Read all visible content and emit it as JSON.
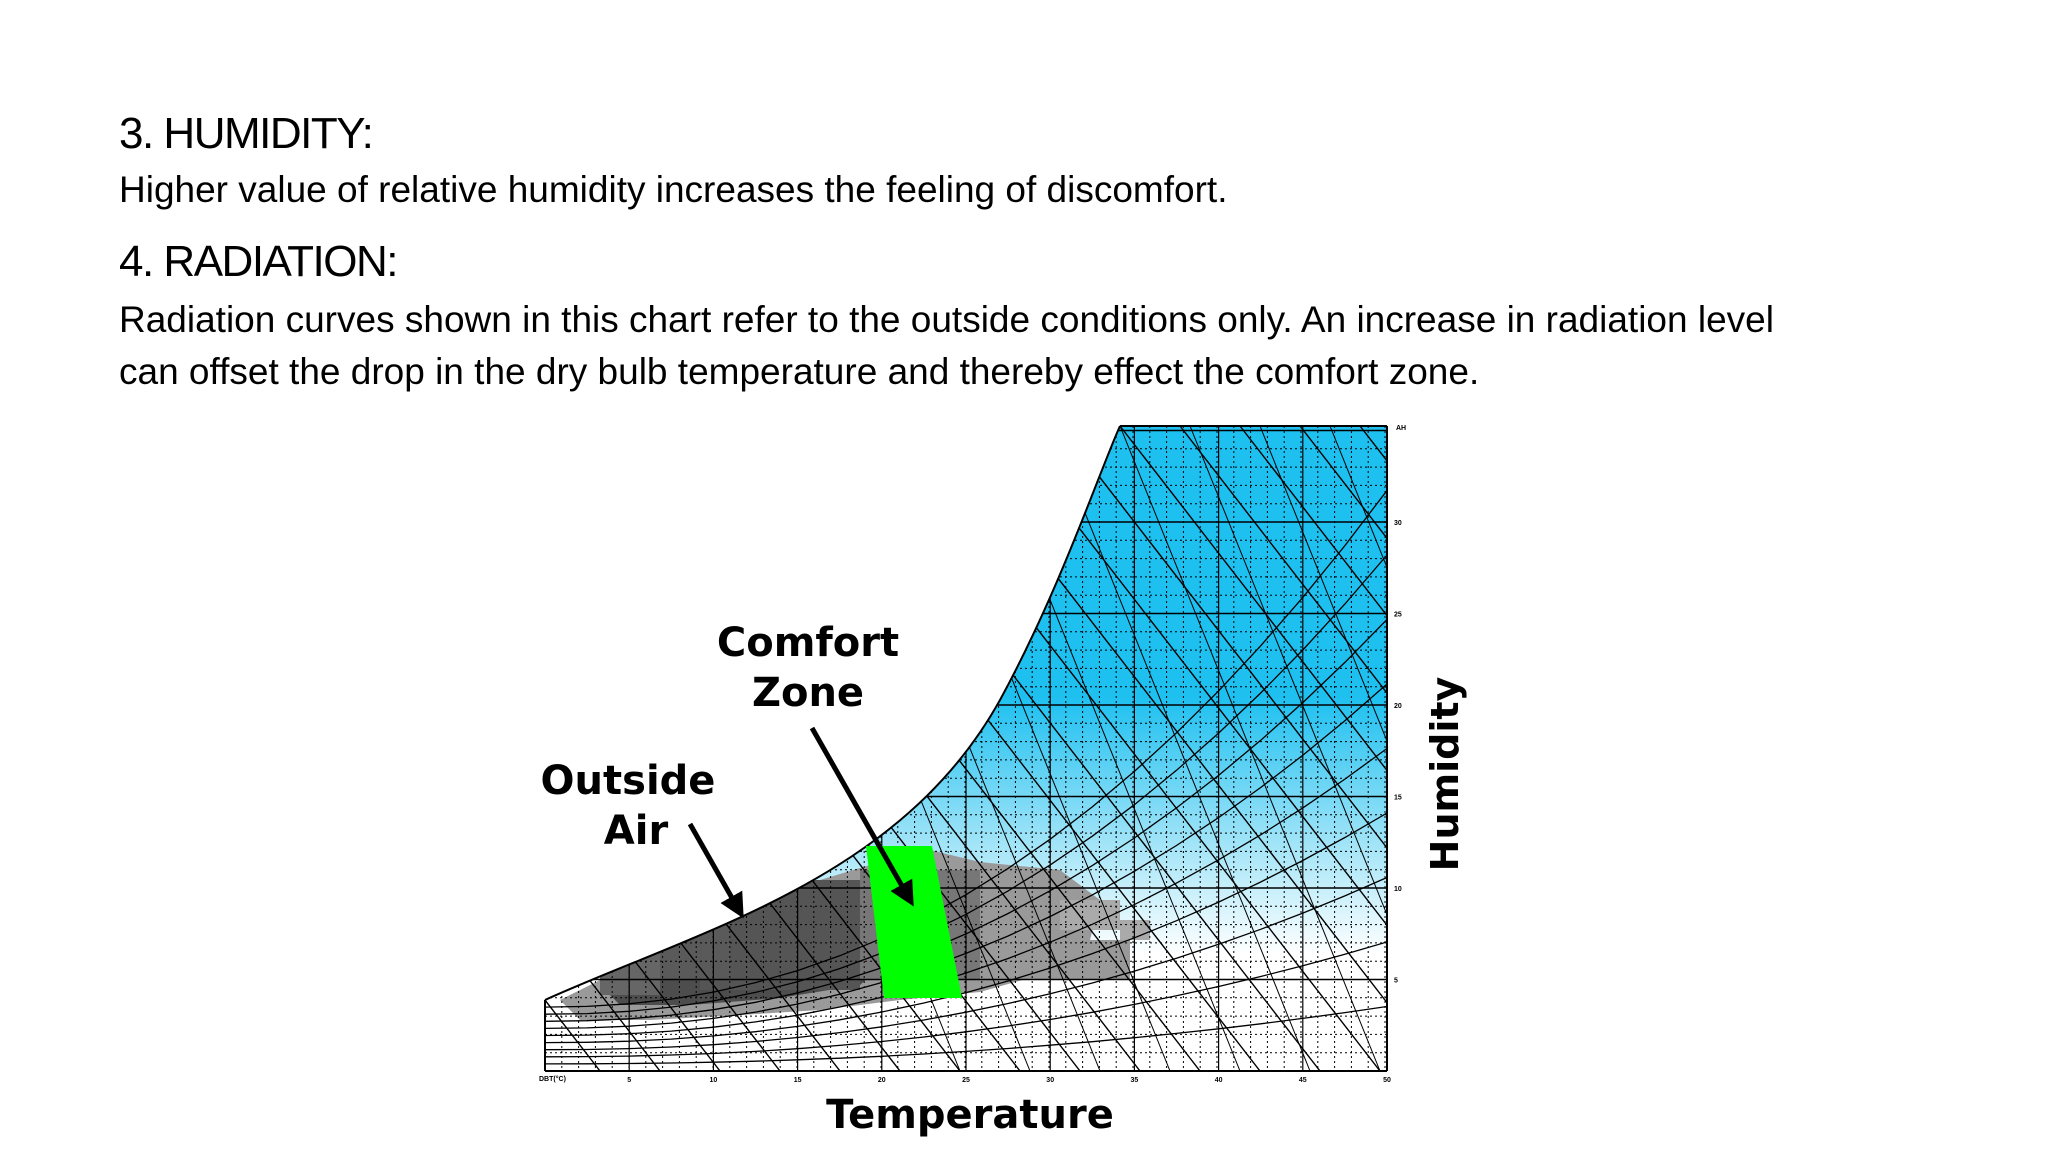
{
  "slide": {
    "humidity_heading": "3. HUMIDITY:",
    "humidity_text": "Higher value of relative humidity increases the feeling of discomfort.",
    "radiation_heading": "4. RADIATION:",
    "radiation_text_line1": "Radiation curves shown in this chart refer to the outside conditions only. An increase in radiation level",
    "radiation_text_line2": "can offset the drop in the dry bulb temperature and thereby effect the comfort zone."
  },
  "chart": {
    "comfort_label_line1": "Comfort",
    "comfort_label_line2": "Zone",
    "outside_label_line1": "Outside",
    "outside_label_line2": "Air",
    "x_title": "Temperature",
    "y_title": "Humidity",
    "dbt_label": "DBT(°C)",
    "x_ticks": [
      "5",
      "10",
      "15",
      "20",
      "25",
      "30",
      "35",
      "40",
      "45",
      "50"
    ],
    "y_ticks": [
      "5",
      "10",
      "15",
      "20",
      "25",
      "30"
    ],
    "ah_label": "AH",
    "colors": {
      "saturation_fill_top": "#1ec0f0",
      "saturation_fill_bottom": "#ffffff",
      "comfort_zone": "#00ff00",
      "outside_air_dark": "#4d4d4d",
      "outside_air_light": "#9a9a9a",
      "grid_line": "#000000"
    }
  }
}
